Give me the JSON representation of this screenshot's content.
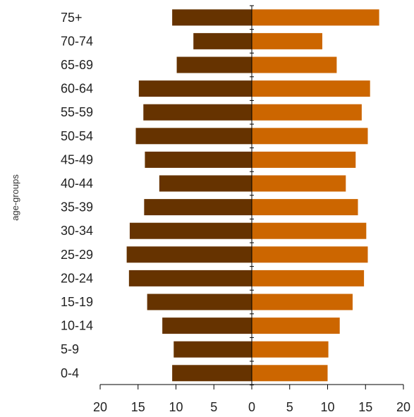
{
  "chart_data": {
    "type": "bar",
    "orientation": "horizontal",
    "layout": "population-pyramid",
    "ylabel": "age-groups",
    "xlabel": "",
    "categories": [
      "75+",
      "70-74",
      "65-69",
      "60-64",
      "55-59",
      "50-54",
      "45-49",
      "40-44",
      "35-39",
      "30-34",
      "25-29",
      "20-24",
      "15-19",
      "10-14",
      "5-9",
      "0-4"
    ],
    "series": [
      {
        "side": "left",
        "color": "#663300",
        "values": [
          10.5,
          7.7,
          9.9,
          14.9,
          14.3,
          15.3,
          14.1,
          12.2,
          14.2,
          16.1,
          16.5,
          16.2,
          13.8,
          11.8,
          10.3,
          10.5
        ]
      },
      {
        "side": "right",
        "color": "#cc6600",
        "values": [
          16.8,
          9.3,
          11.2,
          15.6,
          14.5,
          15.3,
          13.7,
          12.4,
          14.0,
          15.1,
          15.3,
          14.8,
          13.3,
          11.6,
          10.1,
          10.0
        ]
      }
    ],
    "xlim": [
      -20,
      20
    ],
    "xticks": [
      -20,
      -15,
      -10,
      -5,
      0,
      5,
      10,
      15,
      20
    ],
    "xtick_labels": [
      "20",
      "15",
      "10",
      "5",
      "0",
      "5",
      "10",
      "15",
      "20"
    ],
    "grid": false,
    "legend": "none"
  }
}
